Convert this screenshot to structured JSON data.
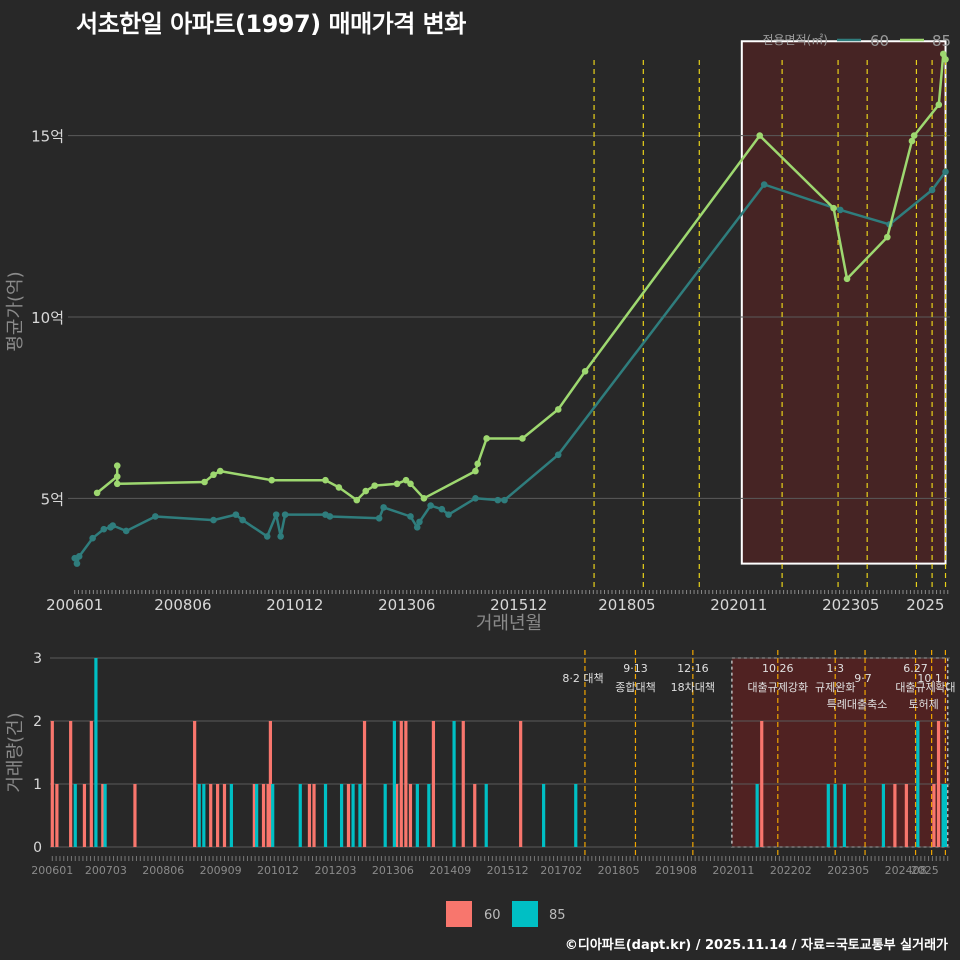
{
  "title": "서초한일 아파트(1997) 매매가격 변화",
  "credit": "©디아파트(dapt.kr) / 2025.11.14 / 자료=국토교통부 실거래가",
  "chart_data": [
    {
      "type": "line",
      "title": "서초한일 아파트(1997) 매매가격 변화",
      "xlabel": "거래년월",
      "ylabel": "평균가(억)",
      "ylim": [
        2.5,
        17.8
      ],
      "y_ticks": [
        {
          "v": 5,
          "label": "5억"
        },
        {
          "v": 10,
          "label": "10억"
        },
        {
          "v": 15,
          "label": "15억"
        }
      ],
      "x_ticks": [
        "200601",
        "200806",
        "201012",
        "201306",
        "201512",
        "201805",
        "202011",
        "202305",
        "2025"
      ],
      "legend": {
        "title": "전용면적(㎡)",
        "entries": [
          "60",
          "85"
        ],
        "position": "top-right"
      },
      "vlines": [
        2017.6,
        2018.7,
        2019.95,
        2021.8,
        2023.05,
        2023.7,
        2024.8,
        2025.15,
        2025.45
      ],
      "highlight_range": [
        2020.9,
        2025.45,
        3.2,
        17.6
      ],
      "series": [
        {
          "name": "60",
          "color": "#2f7d7d",
          "points": [
            [
              2006.0,
              3.35
            ],
            [
              2006.05,
              3.2
            ],
            [
              2006.1,
              3.4
            ],
            [
              2006.4,
              3.9
            ],
            [
              2006.65,
              4.15
            ],
            [
              2006.8,
              4.2
            ],
            [
              2006.85,
              4.25
            ],
            [
              2007.15,
              4.1
            ],
            [
              2007.8,
              4.5
            ],
            [
              2009.1,
              4.4
            ],
            [
              2009.6,
              4.55
            ],
            [
              2009.75,
              4.4
            ],
            [
              2010.3,
              3.95
            ],
            [
              2010.5,
              4.55
            ],
            [
              2010.6,
              3.95
            ],
            [
              2010.7,
              4.55
            ],
            [
              2011.6,
              4.55
            ],
            [
              2011.7,
              4.5
            ],
            [
              2012.8,
              4.45
            ],
            [
              2012.9,
              4.75
            ],
            [
              2013.5,
              4.5
            ],
            [
              2013.65,
              4.2
            ],
            [
              2013.7,
              4.35
            ],
            [
              2013.95,
              4.8
            ],
            [
              2014.2,
              4.7
            ],
            [
              2014.35,
              4.55
            ],
            [
              2014.95,
              5.0
            ],
            [
              2015.45,
              4.95
            ],
            [
              2015.6,
              4.95
            ],
            [
              2016.8,
              6.2
            ],
            [
              2021.4,
              13.65
            ],
            [
              2023.1,
              12.95
            ],
            [
              2024.2,
              12.55
            ],
            [
              2025.15,
              13.5
            ],
            [
              2025.45,
              14.0
            ]
          ]
        },
        {
          "name": "85",
          "color": "#9ed870",
          "points": [
            [
              2006.5,
              5.15
            ],
            [
              2006.95,
              5.6
            ],
            [
              2006.95,
              5.9
            ],
            [
              2006.95,
              5.4
            ],
            [
              2008.9,
              5.45
            ],
            [
              2009.1,
              5.65
            ],
            [
              2009.25,
              5.75
            ],
            [
              2010.4,
              5.5
            ],
            [
              2011.6,
              5.5
            ],
            [
              2011.9,
              5.3
            ],
            [
              2012.3,
              4.95
            ],
            [
              2012.5,
              5.2
            ],
            [
              2012.7,
              5.35
            ],
            [
              2013.2,
              5.4
            ],
            [
              2013.4,
              5.5
            ],
            [
              2013.5,
              5.4
            ],
            [
              2013.8,
              5.0
            ],
            [
              2014.95,
              5.75
            ],
            [
              2015.0,
              5.95
            ],
            [
              2015.2,
              6.65
            ],
            [
              2016.0,
              6.65
            ],
            [
              2016.8,
              7.45
            ],
            [
              2017.4,
              8.5
            ],
            [
              2021.3,
              15.0
            ],
            [
              2022.95,
              13.0
            ],
            [
              2023.25,
              11.05
            ],
            [
              2024.15,
              12.2
            ],
            [
              2024.7,
              14.85
            ],
            [
              2024.75,
              15.0
            ],
            [
              2025.3,
              15.85
            ],
            [
              2025.4,
              17.25
            ],
            [
              2025.45,
              17.1
            ]
          ]
        }
      ]
    },
    {
      "type": "bar",
      "title": "",
      "xlabel": "",
      "ylabel": "거래량(건)",
      "ylim": [
        0,
        3
      ],
      "y_ticks": [
        0,
        1,
        2,
        3
      ],
      "x_ticks": [
        "200601",
        "200703",
        "200806",
        "200909",
        "201012",
        "201203",
        "201306",
        "201409",
        "201512",
        "201702",
        "201805",
        "201908",
        "202011",
        "202202",
        "202305",
        "202408",
        "2025"
      ],
      "legend": {
        "entries": [
          "60",
          "85"
        ],
        "colors": [
          "#f8766d",
          "#00bfc4"
        ],
        "position": "bottom"
      },
      "highlight_range": [
        2020.8,
        2025.5
      ],
      "events": [
        {
          "x": 2017.6,
          "date": "8·2",
          "label": "대책",
          "row": 1
        },
        {
          "x": 2018.7,
          "date": "9·13",
          "label": "종합대책",
          "row": 0
        },
        {
          "x": 2019.95,
          "date": "12·16",
          "label": "18차대책",
          "row": 0
        },
        {
          "x": 2021.8,
          "date": "10.26",
          "label": "대출규제강화",
          "row": 0
        },
        {
          "x": 2023.05,
          "date": "1·3",
          "label": "규제완화",
          "row": 0
        },
        {
          "x": 2023.7,
          "date": "9·7",
          "label": "특례대출축소",
          "row": 1
        },
        {
          "x": 2024.8,
          "date": "6.27",
          "label": "대출규제",
          "row": 0
        },
        {
          "x": 2025.15,
          "date": "10.1",
          "label": "토허제",
          "row": 1
        },
        {
          "x": 2025.45,
          "date": "",
          "label": "확대",
          "row": 0
        }
      ],
      "series": [
        {
          "name": "60",
          "color": "#f8766d",
          "bars": [
            [
              2006.0,
              2
            ],
            [
              2006.1,
              1
            ],
            [
              2006.4,
              2
            ],
            [
              2006.7,
              1
            ],
            [
              2006.85,
              2
            ],
            [
              2007.1,
              1
            ],
            [
              2007.8,
              1
            ],
            [
              2009.1,
              2
            ],
            [
              2009.45,
              1
            ],
            [
              2009.6,
              1
            ],
            [
              2009.75,
              1
            ],
            [
              2010.4,
              1
            ],
            [
              2010.6,
              1
            ],
            [
              2010.7,
              1
            ],
            [
              2010.75,
              2
            ],
            [
              2011.6,
              1
            ],
            [
              2011.7,
              1
            ],
            [
              2012.45,
              1
            ],
            [
              2012.8,
              2
            ],
            [
              2013.5,
              1
            ],
            [
              2013.6,
              2
            ],
            [
              2013.7,
              2
            ],
            [
              2013.8,
              1
            ],
            [
              2014.3,
              2
            ],
            [
              2014.95,
              2
            ],
            [
              2015.2,
              1
            ],
            [
              2016.2,
              2
            ],
            [
              2021.45,
              2
            ],
            [
              2024.35,
              1
            ],
            [
              2024.6,
              1
            ],
            [
              2025.2,
              1
            ],
            [
              2025.3,
              2
            ]
          ]
        },
        {
          "name": "85",
          "color": "#00bfc4",
          "bars": [
            [
              2006.5,
              1
            ],
            [
              2006.95,
              3
            ],
            [
              2007.15,
              1
            ],
            [
              2009.2,
              1
            ],
            [
              2009.3,
              1
            ],
            [
              2009.9,
              1
            ],
            [
              2010.45,
              1
            ],
            [
              2010.8,
              1
            ],
            [
              2011.4,
              1
            ],
            [
              2011.95,
              1
            ],
            [
              2012.3,
              1
            ],
            [
              2012.55,
              1
            ],
            [
              2012.7,
              1
            ],
            [
              2013.25,
              1
            ],
            [
              2013.45,
              2
            ],
            [
              2013.95,
              1
            ],
            [
              2014.2,
              1
            ],
            [
              2014.75,
              2
            ],
            [
              2015.45,
              1
            ],
            [
              2016.7,
              1
            ],
            [
              2017.4,
              1
            ],
            [
              2021.35,
              1
            ],
            [
              2022.9,
              1
            ],
            [
              2023.05,
              1
            ],
            [
              2023.25,
              1
            ],
            [
              2024.1,
              1
            ],
            [
              2024.85,
              2
            ],
            [
              2025.4,
              1
            ],
            [
              2025.45,
              1
            ]
          ]
        }
      ]
    }
  ]
}
